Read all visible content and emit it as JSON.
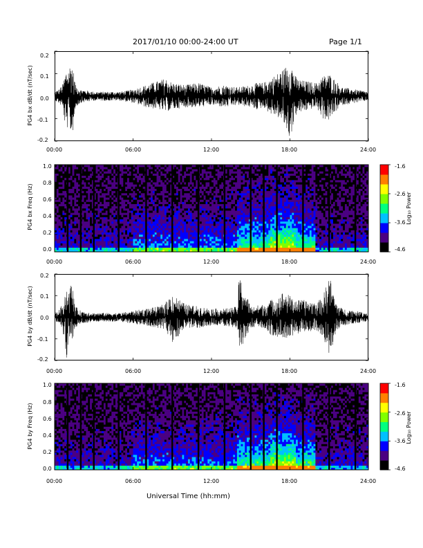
{
  "header": {
    "title": "2017/01/10  00:00-24:00 UT",
    "page": "Page 1/1"
  },
  "footer": {
    "xlabel": "Universal Time (hh:mm)"
  },
  "colorbar": {
    "label": "Log₁₀ Power",
    "ticks": [
      "-1.6",
      "-2.6",
      "-3.6",
      "-4.6"
    ],
    "colors": [
      "#000000",
      "#4b0082",
      "#0000ff",
      "#00c0ff",
      "#00ff80",
      "#80ff00",
      "#ffff00",
      "#ff8000",
      "#ff0000"
    ]
  },
  "chart_data": [
    {
      "type": "line",
      "ylabel": "PG4 bx dB/dt (nT/sec)",
      "ylim": [
        -0.2,
        0.2
      ],
      "yticks": [
        "0.2",
        "0.1",
        "0.0",
        "-0.1",
        "-0.2"
      ],
      "xlim": [
        "00:00",
        "24:00"
      ],
      "xticks": [
        "00:00",
        "06:00",
        "12:00",
        "18:00",
        "24:00"
      ],
      "envelope": {
        "hours": [
          0,
          0.3,
          0.6,
          0.9,
          1.1,
          1.3,
          1.6,
          2,
          3,
          4,
          5,
          6,
          7,
          8,
          8.5,
          9,
          10,
          11,
          12,
          13,
          14,
          15,
          15.5,
          16,
          16.5,
          17,
          17.5,
          18,
          18.5,
          19,
          20,
          20.5,
          21,
          21.5,
          22,
          23,
          24
        ],
        "upper": [
          0.02,
          0.03,
          0.05,
          0.12,
          0.13,
          0.16,
          0.05,
          0.03,
          0.02,
          0.02,
          0.02,
          0.03,
          0.05,
          0.07,
          0.08,
          0.06,
          0.05,
          0.06,
          0.04,
          0.05,
          0.04,
          0.05,
          0.06,
          0.06,
          0.08,
          0.1,
          0.12,
          0.16,
          0.08,
          0.07,
          0.06,
          0.09,
          0.1,
          0.07,
          0.04,
          0.03,
          0.02
        ],
        "lower": [
          -0.02,
          -0.03,
          -0.05,
          -0.17,
          -0.1,
          -0.2,
          -0.05,
          -0.03,
          -0.02,
          -0.02,
          -0.02,
          -0.03,
          -0.05,
          -0.06,
          -0.07,
          -0.06,
          -0.05,
          -0.05,
          -0.04,
          -0.05,
          -0.04,
          -0.05,
          -0.06,
          -0.05,
          -0.08,
          -0.09,
          -0.12,
          -0.19,
          -0.08,
          -0.07,
          -0.05,
          -0.1,
          -0.11,
          -0.07,
          -0.04,
          -0.03,
          -0.02
        ]
      }
    },
    {
      "type": "heatmap",
      "ylabel": "PG4 bx Freq (Hz)",
      "ylim": [
        0.0,
        1.0
      ],
      "yticks": [
        "1.0",
        "0.8",
        "0.6",
        "0.4",
        "0.2",
        "0.0"
      ],
      "xlim": [
        "00:00",
        "24:00"
      ],
      "xticks": [
        "00:00",
        "06:00",
        "12:00",
        "18:00",
        "24:00"
      ],
      "zlim": [
        -4.6,
        -1.6
      ],
      "gap_hours": [
        1.0,
        2.0,
        3.0,
        4.9,
        7.0,
        9.0,
        11.0,
        13.0,
        15.0,
        16.0,
        17.0,
        19.0,
        21.0,
        23.0
      ]
    },
    {
      "type": "line",
      "ylabel": "PG4 by dB/dt (nT/sec)",
      "ylim": [
        -0.2,
        0.2
      ],
      "yticks": [
        "0.2",
        "0.1",
        "0.0",
        "-0.1",
        "-0.2"
      ],
      "xlim": [
        "00:00",
        "24:00"
      ],
      "xticks": [
        "00:00",
        "06:00",
        "12:00",
        "18:00",
        "24:00"
      ],
      "envelope": {
        "hours": [
          0,
          0.3,
          0.6,
          0.9,
          1.1,
          1.3,
          1.6,
          2,
          3,
          4,
          5,
          6,
          7,
          8,
          8.5,
          9,
          10,
          11,
          12,
          13,
          14,
          14.1,
          15,
          16,
          16.5,
          17,
          17.5,
          18,
          18.5,
          19,
          20,
          20.5,
          21,
          21.5,
          22,
          23,
          24
        ],
        "upper": [
          0.02,
          0.03,
          0.06,
          0.14,
          0.12,
          0.17,
          0.05,
          0.03,
          0.02,
          0.02,
          0.02,
          0.03,
          0.04,
          0.05,
          0.07,
          0.11,
          0.06,
          0.05,
          0.04,
          0.04,
          0.05,
          0.2,
          0.05,
          0.06,
          0.08,
          0.09,
          0.12,
          0.1,
          0.08,
          0.08,
          0.07,
          0.09,
          0.2,
          0.07,
          0.04,
          0.03,
          0.02
        ],
        "lower": [
          -0.02,
          -0.03,
          -0.06,
          -0.2,
          -0.1,
          -0.12,
          -0.05,
          -0.03,
          -0.02,
          -0.02,
          -0.02,
          -0.03,
          -0.04,
          -0.05,
          -0.06,
          -0.12,
          -0.05,
          -0.05,
          -0.04,
          -0.04,
          -0.05,
          -0.16,
          -0.05,
          -0.05,
          -0.08,
          -0.09,
          -0.1,
          -0.09,
          -0.08,
          -0.07,
          -0.06,
          -0.09,
          -0.2,
          -0.07,
          -0.04,
          -0.03,
          -0.02
        ]
      }
    },
    {
      "type": "heatmap",
      "ylabel": "PG4 by Freq (Hz)",
      "ylim": [
        0.0,
        1.0
      ],
      "yticks": [
        "1.0",
        "0.8",
        "0.6",
        "0.4",
        "0.2",
        "0.0"
      ],
      "xlim": [
        "00:00",
        "24:00"
      ],
      "xticks": [
        "00:00",
        "06:00",
        "12:00",
        "18:00",
        "24:00"
      ],
      "zlim": [
        -4.6,
        -1.6
      ],
      "gap_hours": [
        1.0,
        2.0,
        3.0,
        4.9,
        7.0,
        9.0,
        11.0,
        13.0,
        15.0,
        16.0,
        17.0,
        19.0,
        21.0,
        23.0
      ]
    }
  ]
}
